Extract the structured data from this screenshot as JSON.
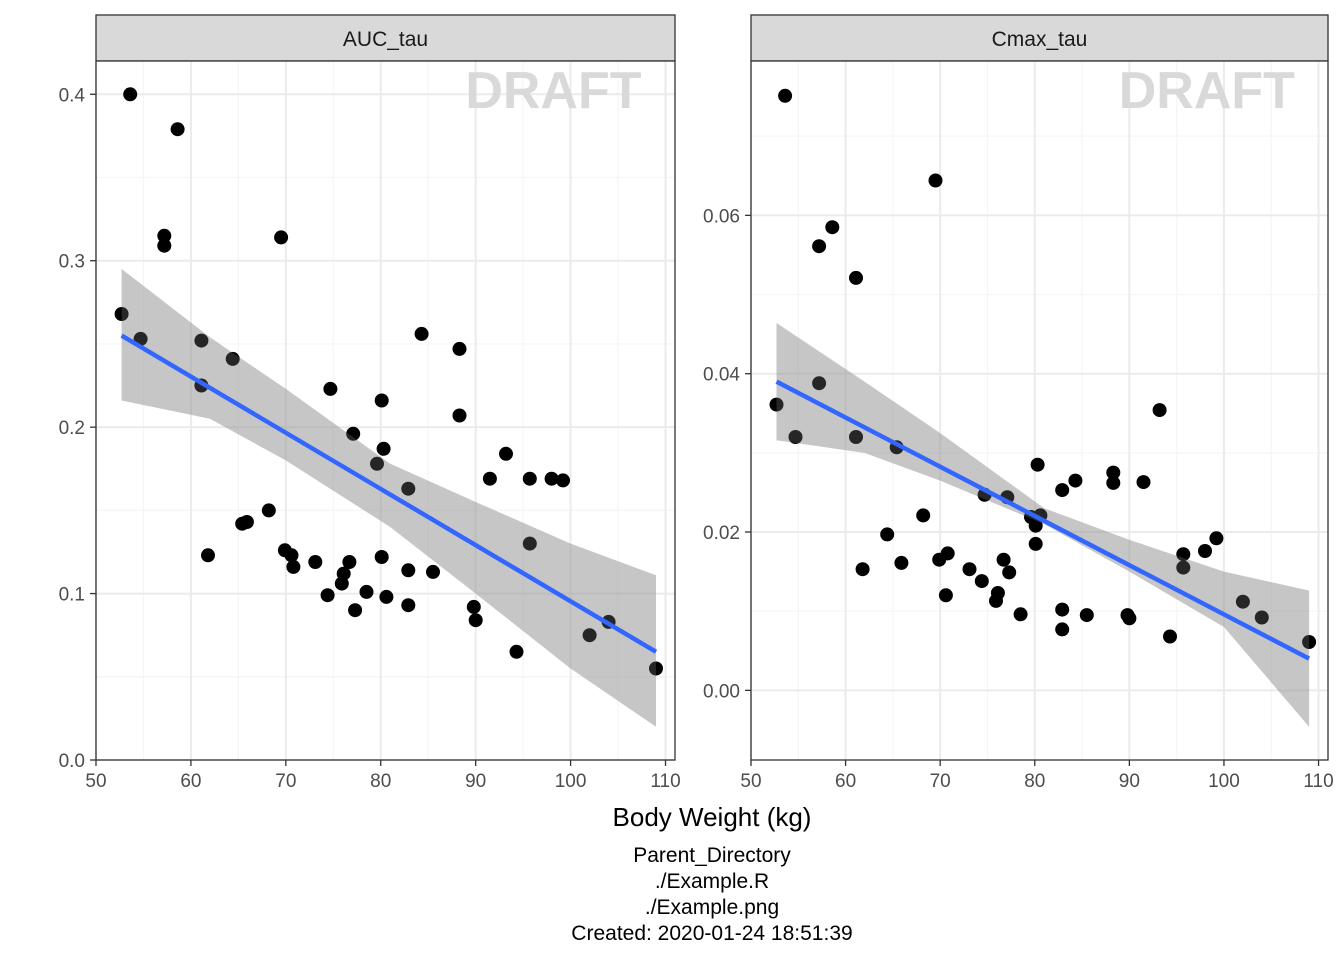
{
  "chart_data": {
    "type": "scatter",
    "xlabel": "Body Weight (kg)",
    "watermark": "DRAFT",
    "grid": true,
    "facets": [
      {
        "name": "AUC_tau",
        "xlim": [
          50,
          111
        ],
        "ylim": [
          0,
          0.42
        ],
        "xticks": [
          50,
          60,
          70,
          80,
          90,
          100,
          110
        ],
        "yticks": [
          0.0,
          0.1,
          0.2,
          0.3,
          0.4
        ],
        "ytick_labels": [
          "0.0",
          "0.1",
          "0.2",
          "0.3",
          "0.4"
        ],
        "points": [
          [
            52.7,
            0.268
          ],
          [
            53.6,
            0.4
          ],
          [
            54.7,
            0.253
          ],
          [
            57.2,
            0.315
          ],
          [
            57.2,
            0.309
          ],
          [
            58.6,
            0.379
          ],
          [
            61.1,
            0.252
          ],
          [
            61.1,
            0.225
          ],
          [
            61.8,
            0.123
          ],
          [
            64.4,
            0.241
          ],
          [
            65.4,
            0.142
          ],
          [
            65.9,
            0.143
          ],
          [
            68.2,
            0.15
          ],
          [
            69.5,
            0.314
          ],
          [
            69.9,
            0.126
          ],
          [
            70.6,
            0.123
          ],
          [
            70.8,
            0.116
          ],
          [
            73.1,
            0.119
          ],
          [
            74.4,
            0.099
          ],
          [
            74.7,
            0.223
          ],
          [
            75.9,
            0.106
          ],
          [
            76.1,
            0.112
          ],
          [
            76.7,
            0.119
          ],
          [
            77.1,
            0.196
          ],
          [
            77.3,
            0.09
          ],
          [
            78.5,
            0.101
          ],
          [
            79.6,
            0.178
          ],
          [
            80.1,
            0.216
          ],
          [
            80.1,
            0.122
          ],
          [
            80.3,
            0.187
          ],
          [
            80.6,
            0.098
          ],
          [
            82.9,
            0.163
          ],
          [
            82.9,
            0.114
          ],
          [
            82.9,
            0.093
          ],
          [
            84.3,
            0.256
          ],
          [
            85.5,
            0.113
          ],
          [
            88.3,
            0.247
          ],
          [
            88.3,
            0.207
          ],
          [
            89.8,
            0.092
          ],
          [
            90.0,
            0.084
          ],
          [
            91.5,
            0.169
          ],
          [
            93.2,
            0.184
          ],
          [
            94.3,
            0.065
          ],
          [
            95.7,
            0.169
          ],
          [
            95.7,
            0.13
          ],
          [
            98.0,
            0.169
          ],
          [
            99.2,
            0.168
          ],
          [
            102.0,
            0.075
          ],
          [
            104.0,
            0.083
          ],
          [
            109.0,
            0.055
          ]
        ],
        "fit": {
          "x": [
            52.7,
            109.0
          ],
          "y": [
            0.255,
            0.065
          ]
        },
        "ribbon": {
          "x": [
            52.7,
            62.0,
            70.0,
            81.0,
            90.0,
            100.0,
            109.0
          ],
          "lo": [
            0.216,
            0.205,
            0.18,
            0.14,
            0.1,
            0.055,
            0.02
          ],
          "hi": [
            0.295,
            0.254,
            0.223,
            0.178,
            0.155,
            0.13,
            0.111
          ]
        }
      },
      {
        "name": "Cmax_tau",
        "xlim": [
          50,
          111
        ],
        "ylim": [
          -0.0088,
          0.0795
        ],
        "xticks": [
          50,
          60,
          70,
          80,
          90,
          100,
          110
        ],
        "yticks": [
          0.0,
          0.02,
          0.04,
          0.06
        ],
        "ytick_labels": [
          "0.00",
          "0.02",
          "0.04",
          "0.06"
        ],
        "points": [
          [
            52.7,
            0.0361
          ],
          [
            53.6,
            0.0751
          ],
          [
            54.7,
            0.032
          ],
          [
            57.2,
            0.0561
          ],
          [
            57.2,
            0.0388
          ],
          [
            58.6,
            0.0585
          ],
          [
            61.1,
            0.0521
          ],
          [
            61.1,
            0.032
          ],
          [
            61.8,
            0.0153
          ],
          [
            64.4,
            0.0197
          ],
          [
            65.4,
            0.0307
          ],
          [
            65.9,
            0.0161
          ],
          [
            68.2,
            0.0221
          ],
          [
            69.5,
            0.0644
          ],
          [
            69.9,
            0.0165
          ],
          [
            70.6,
            0.012
          ],
          [
            70.8,
            0.0173
          ],
          [
            73.1,
            0.0153
          ],
          [
            74.4,
            0.0138
          ],
          [
            74.7,
            0.0247
          ],
          [
            75.9,
            0.0113
          ],
          [
            76.1,
            0.0123
          ],
          [
            76.7,
            0.0165
          ],
          [
            77.1,
            0.0244
          ],
          [
            77.3,
            0.0149
          ],
          [
            78.5,
            0.0096
          ],
          [
            79.6,
            0.0219
          ],
          [
            80.1,
            0.0208
          ],
          [
            80.1,
            0.0185
          ],
          [
            80.3,
            0.0285
          ],
          [
            80.6,
            0.0221
          ],
          [
            82.9,
            0.0253
          ],
          [
            82.9,
            0.0102
          ],
          [
            82.9,
            0.0077
          ],
          [
            84.3,
            0.0265
          ],
          [
            85.5,
            0.0095
          ],
          [
            88.3,
            0.0275
          ],
          [
            88.3,
            0.0262
          ],
          [
            89.8,
            0.0095
          ],
          [
            90.0,
            0.0091
          ],
          [
            91.5,
            0.0263
          ],
          [
            93.2,
            0.0354
          ],
          [
            94.3,
            0.0068
          ],
          [
            95.7,
            0.0172
          ],
          [
            95.7,
            0.0155
          ],
          [
            98.0,
            0.0176
          ],
          [
            99.2,
            0.0192
          ],
          [
            102.0,
            0.0112
          ],
          [
            104.0,
            0.0092
          ],
          [
            109.0,
            0.0061
          ]
        ],
        "fit": {
          "x": [
            52.7,
            109.0
          ],
          "y": [
            0.039,
            0.004
          ]
        },
        "ribbon": {
          "x": [
            52.7,
            62.0,
            70.0,
            81.0,
            90.0,
            100.0,
            109.0
          ],
          "lo": [
            0.0316,
            0.03,
            0.0265,
            0.021,
            0.015,
            0.008,
            -0.0046
          ],
          "hi": [
            0.0464,
            0.039,
            0.0325,
            0.023,
            0.019,
            0.015,
            0.0126
          ]
        }
      }
    ]
  },
  "caption": {
    "line1": "Parent_Directory",
    "line2": "./Example.R",
    "line3": "./Example.png",
    "line4": "Created: 2020-01-24 18:51:39"
  },
  "colors": {
    "points": "#000000",
    "fit_line": "#3366FF",
    "ribbon": "#999999",
    "strip_bg": "#D9D9D9",
    "grid_major": "#EBEBEB",
    "grid_minor": "#F5F5F5",
    "panel_border": "#333333"
  }
}
